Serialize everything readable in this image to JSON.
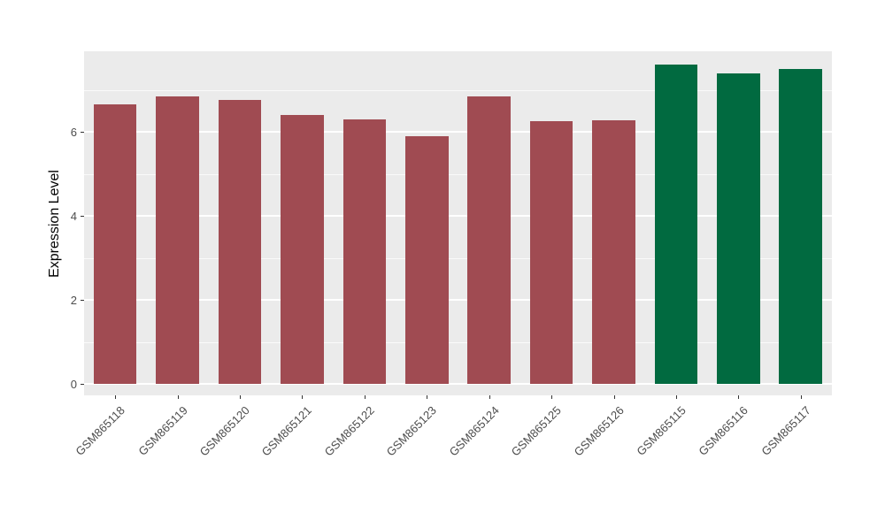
{
  "chart_data": {
    "type": "bar",
    "title": "",
    "xlabel": "",
    "ylabel": "Expression Level",
    "categories": [
      "GSM865118",
      "GSM865119",
      "GSM865120",
      "GSM865121",
      "GSM865122",
      "GSM865123",
      "GSM865124",
      "GSM865125",
      "GSM865126",
      "GSM865115",
      "GSM865116",
      "GSM865117"
    ],
    "values": [
      6.65,
      6.85,
      6.75,
      6.4,
      6.3,
      5.9,
      6.85,
      6.25,
      6.27,
      7.6,
      7.4,
      7.5
    ],
    "bar_colors": [
      "#A04B52",
      "#A04B52",
      "#A04B52",
      "#A04B52",
      "#A04B52",
      "#A04B52",
      "#A04B52",
      "#A04B52",
      "#A04B52",
      "#016A40",
      "#016A40",
      "#016A40"
    ],
    "group_colors": {
      "group1": "#A04B52",
      "group2": "#016A40"
    },
    "yticks_major": [
      0,
      2,
      4,
      6
    ],
    "yticks_minor": [
      1,
      3,
      5,
      7
    ],
    "ylim": [
      -0.38,
      7.98
    ],
    "bar_width_fraction": 0.69,
    "panel_background": "#EBEBEB",
    "gridline_color": "#FFFFFF",
    "tick_label_color": "#4D4D4D",
    "axis_title_color": "#000000",
    "legend_position": "none",
    "grid": "on"
  }
}
